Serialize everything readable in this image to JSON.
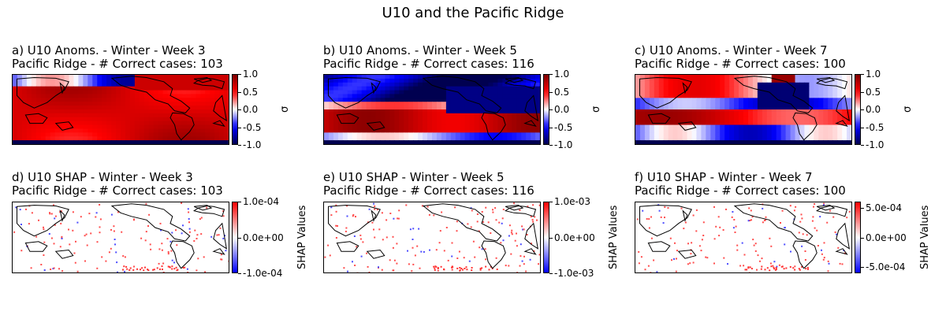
{
  "figure": {
    "suptitle": "U10 and the Pacific Ridge"
  },
  "chart_data": [
    {
      "type": "heatmap",
      "title_line1": "a) U10 Anoms. - Winter - Week 3",
      "title_line2": "Pacific Ridge - # Correct cases: 103",
      "colorbar_label": "σ",
      "colorbar_ticks": [
        "1.0",
        "0.5",
        "0.0",
        "-0.5",
        "-1.0"
      ],
      "vmin": -1.0,
      "vmax": 1.0,
      "colormap": "seismic"
    },
    {
      "type": "heatmap",
      "title_line1": "b) U10 Anoms. - Winter - Week 5",
      "title_line2": "Pacific Ridge - # Correct cases: 116",
      "colorbar_label": "σ",
      "colorbar_ticks": [
        "1.0",
        "0.5",
        "0.0",
        "-0.5",
        "-1.0"
      ],
      "vmin": -1.0,
      "vmax": 1.0,
      "colormap": "seismic"
    },
    {
      "type": "heatmap",
      "title_line1": "c) U10 Anoms. - Winter - Week 7",
      "title_line2": "Pacific Ridge - # Correct cases: 100",
      "colorbar_label": "σ",
      "colorbar_ticks": [
        "1.0",
        "0.5",
        "0.0",
        "-0.5",
        "-1.0"
      ],
      "vmin": -1.0,
      "vmax": 1.0,
      "colormap": "seismic"
    },
    {
      "type": "heatmap",
      "title_line1": "d) U10 SHAP - Winter - Week 3",
      "title_line2": "Pacific Ridge - # Correct cases: 103",
      "colorbar_label": "SHAP Values",
      "colorbar_ticks": [
        "1.0e-04",
        "0.0e+00",
        "-1.0e-04"
      ],
      "vmin": -0.0001,
      "vmax": 0.0001,
      "colormap": "bwr"
    },
    {
      "type": "heatmap",
      "title_line1": "e) U10 SHAP - Winter - Week 5",
      "title_line2": "Pacific Ridge - # Correct cases: 116",
      "colorbar_label": "SHAP Values",
      "colorbar_ticks": [
        "1.0e-03",
        "0.0e+00",
        "-1.0e-03"
      ],
      "vmin": -0.001,
      "vmax": 0.001,
      "colormap": "bwr"
    },
    {
      "type": "heatmap",
      "title_line1": "f) U10 SHAP - Winter - Week 7",
      "title_line2": "Pacific Ridge - # Correct cases: 100",
      "colorbar_label": "SHAP Values",
      "colorbar_ticks": [
        "5.0e-04",
        "0.0e+00",
        "-5.0e-04"
      ],
      "vmin": -0.0006,
      "vmax": 0.0006,
      "colormap": "bwr"
    }
  ]
}
